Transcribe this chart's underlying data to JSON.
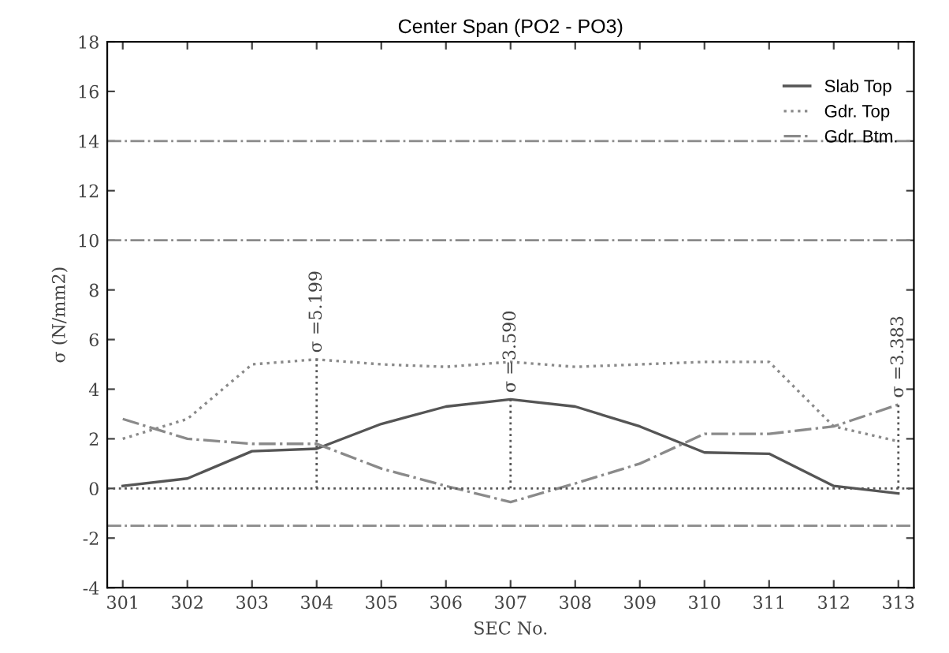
{
  "chart_data": {
    "type": "line",
    "title": "Center Span (PO2 - PO3)",
    "xlabel": "SEC No.",
    "ylabel": "σ (N/mm2)",
    "categories": [
      "301",
      "302",
      "303",
      "304",
      "305",
      "306",
      "307",
      "308",
      "309",
      "310",
      "311",
      "312",
      "313"
    ],
    "series": [
      {
        "name": "Slab Top",
        "color": "#555555",
        "line_style": "solid",
        "values": [
          0.1,
          0.4,
          1.5,
          1.6,
          2.6,
          3.3,
          3.59,
          3.3,
          2.5,
          1.45,
          1.4,
          0.1,
          -0.2
        ]
      },
      {
        "name": "Gdr. Top",
        "color": "#8a8a8a",
        "line_style": "dotted",
        "values": [
          2.0,
          2.8,
          5.0,
          5.2,
          5.0,
          4.9,
          5.1,
          4.9,
          5.0,
          5.1,
          5.1,
          2.5,
          1.9
        ]
      },
      {
        "name": "Gdr. Btm.",
        "color": "#8a8a8a",
        "line_style": "dashed",
        "values": [
          2.8,
          2.0,
          1.8,
          1.8,
          0.8,
          0.1,
          -0.55,
          0.2,
          1.0,
          2.2,
          2.2,
          2.5,
          3.38
        ]
      }
    ],
    "annotations": [
      {
        "text": "σ =5.199",
        "x": "304",
        "y": 5.199
      },
      {
        "text": "σ =3.590",
        "x": "307",
        "y": 3.59
      },
      {
        "text": "σ =3.383",
        "x": "313",
        "y": 3.383
      }
    ],
    "ref_lines": [
      {
        "axis": "y",
        "value": 14,
        "color": "#8a8a8a",
        "line_style": "dashed"
      },
      {
        "axis": "y",
        "value": 10,
        "color": "#8a8a8a",
        "line_style": "dashed"
      },
      {
        "axis": "y",
        "value": 0,
        "color": "#555555",
        "line_style": "dotted"
      },
      {
        "axis": "y",
        "value": -1.5,
        "color": "#8a8a8a",
        "line_style": "dashed"
      }
    ],
    "ylim": [
      -4,
      18
    ],
    "yticks": [
      -4,
      -2,
      0,
      2,
      4,
      6,
      8,
      10,
      12,
      14,
      16,
      18
    ],
    "grid": false,
    "legend": "top right",
    "marker": "none"
  }
}
